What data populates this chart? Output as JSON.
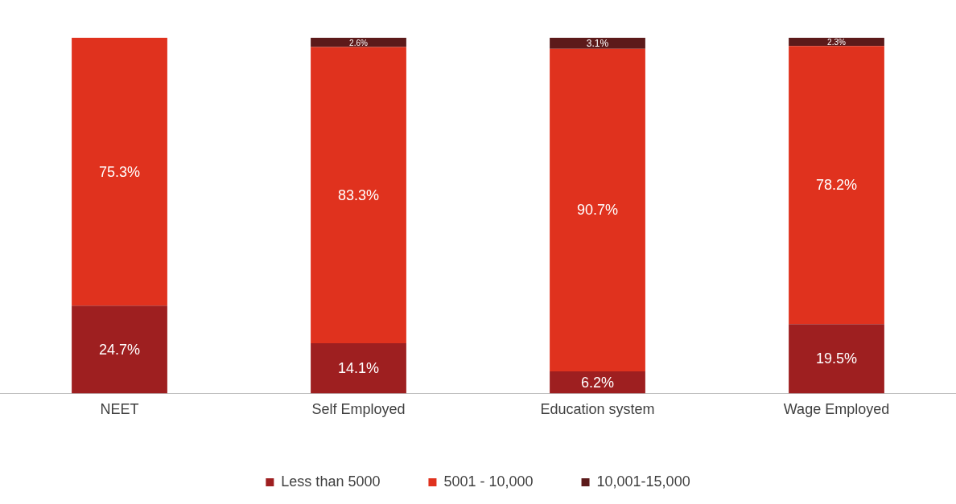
{
  "chart_data": {
    "type": "bar",
    "stacked": true,
    "categories": [
      "NEET",
      "Self Employed",
      "Education system",
      "Wage Employed"
    ],
    "series": [
      {
        "name": "Less than 5000",
        "color": "#9e1f20",
        "values": [
          24.7,
          14.1,
          6.2,
          19.5
        ],
        "value_labels": [
          "24.7%",
          "14.1%",
          "6.2%",
          "19.5%"
        ]
      },
      {
        "name": "5001 - 10,000",
        "color": "#e0321e",
        "values": [
          75.3,
          83.3,
          90.7,
          78.2
        ],
        "value_labels": [
          "75.3%",
          "83.3%",
          "90.7%",
          "78.2%"
        ]
      },
      {
        "name": "10,001-15,000",
        "color": "#5c1a1a",
        "values": [
          null,
          2.6,
          3.1,
          2.3
        ],
        "value_labels": [
          null,
          "2.6%",
          "3.1%",
          "2.3%"
        ]
      }
    ],
    "grid": false,
    "legend": "bottom",
    "tick_labels": "x"
  }
}
